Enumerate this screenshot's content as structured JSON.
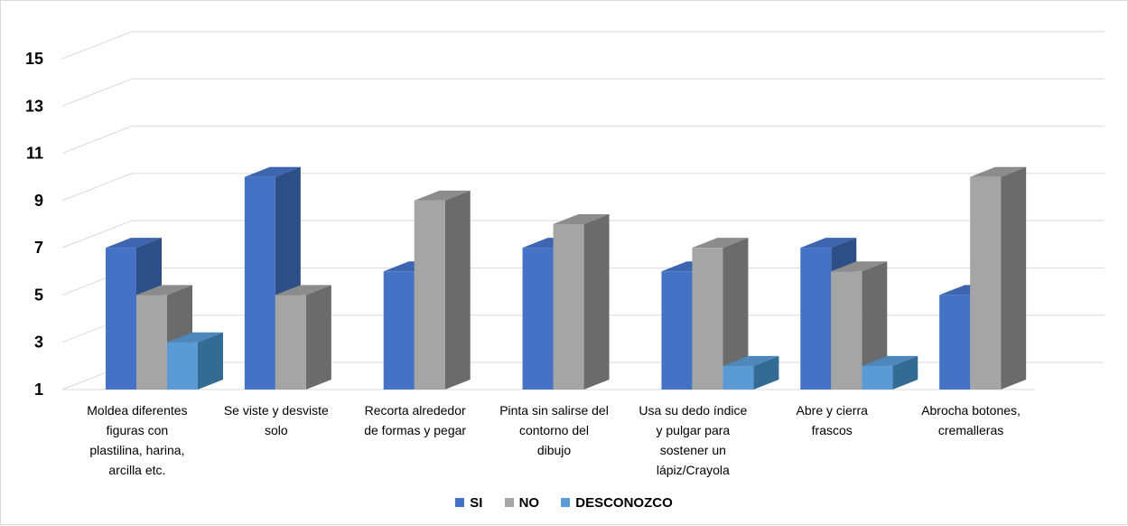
{
  "chart_data": {
    "type": "bar",
    "title": "",
    "xlabel": "",
    "ylabel": "",
    "ylim": [
      1,
      15
    ],
    "yticks": [
      1,
      3,
      5,
      7,
      9,
      11,
      13,
      15
    ],
    "grid": true,
    "legend_position": "bottom",
    "categories": [
      "Moldea diferentes figuras con plastilina, harina, arcilla etc.",
      "Se viste y desviste solo",
      "Recorta alrededor de formas y pegar",
      "Pinta sin salirse del contorno del dibujo",
      "Usa su dedo índice y pulgar para sostener un lápiz/Crayola",
      "Abre y cierra frascos",
      "Abrocha botones, cremalleras"
    ],
    "category_lines": [
      [
        "Moldea diferentes",
        "figuras con",
        "plastilina, harina,",
        "arcilla etc."
      ],
      [
        "Se viste y desviste",
        "solo"
      ],
      [
        "Recorta alrededor",
        "de formas y pegar"
      ],
      [
        "Pinta sin salirse del",
        "contorno del",
        "dibujo"
      ],
      [
        "Usa su dedo índice",
        "y pulgar para",
        "sostener un",
        "lápiz/Crayola"
      ],
      [
        "Abre y cierra",
        "frascos"
      ],
      [
        "Abrocha botones,",
        "cremalleras"
      ]
    ],
    "series": [
      {
        "name": "SI",
        "values": [
          7,
          10,
          6,
          7,
          6,
          7,
          5
        ],
        "color": "#4472c4",
        "side_color": "#2e4e86",
        "top_color": "#3d65b0"
      },
      {
        "name": "NO",
        "values": [
          5,
          5,
          9,
          8,
          7,
          6,
          10
        ],
        "color": "#a5a5a5",
        "side_color": "#6b6b6b",
        "top_color": "#8c8c8c"
      },
      {
        "name": "DESCONOZCO",
        "values": [
          3,
          null,
          null,
          null,
          2,
          2,
          null
        ],
        "color": "#5b9bd5",
        "side_color": "#336b95",
        "top_color": "#4e87bb"
      }
    ]
  },
  "legend": {
    "items": [
      {
        "label": "SI",
        "color": "#4472c4"
      },
      {
        "label": "NO",
        "color": "#a5a5a5"
      },
      {
        "label": "DESCONOZCO",
        "color": "#5b9bd5"
      }
    ]
  }
}
